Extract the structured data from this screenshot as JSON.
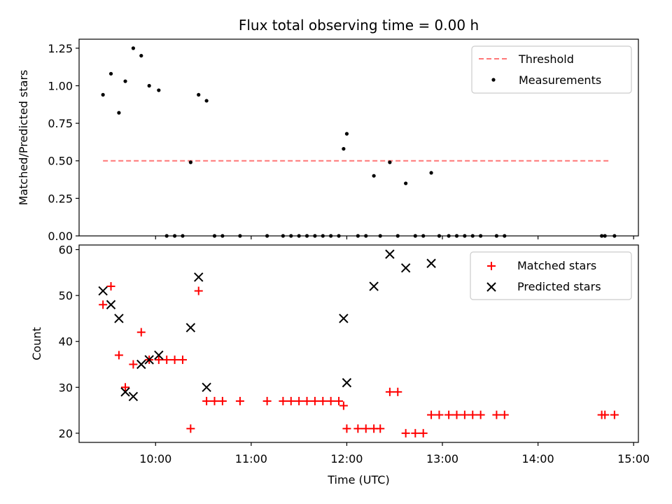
{
  "title": "Flux total observing time = 0.00 h",
  "chart_data": [
    {
      "type": "scatter",
      "ylabel": "Matched/Predicted stars",
      "ylim": [
        0,
        1.31
      ],
      "xlim": [
        "09:12",
        "15:03"
      ],
      "yticks": [
        "0.00",
        "0.25",
        "0.50",
        "0.75",
        "1.00",
        "1.25"
      ],
      "ytick_values": [
        0,
        0.25,
        0.5,
        0.75,
        1.0,
        1.25
      ],
      "legend_placement": "upper right",
      "threshold": {
        "name": "Threshold",
        "value": 0.5,
        "x_start": "09:27",
        "x_end": "14:45",
        "color": "#ff7777"
      },
      "series": [
        {
          "name": "Measurements",
          "color": "#000000",
          "x": [
            "09:27",
            "09:32",
            "09:37",
            "09:41",
            "09:46",
            "09:51",
            "09:56",
            "10:02",
            "10:07",
            "10:12",
            "10:17",
            "10:22",
            "10:27",
            "10:32",
            "10:37",
            "10:42",
            "10:53",
            "11:10",
            "11:20",
            "11:25",
            "11:30",
            "11:35",
            "11:40",
            "11:45",
            "11:50",
            "11:55",
            "11:58",
            "12:00",
            "12:07",
            "12:12",
            "12:17",
            "12:21",
            "12:27",
            "12:32",
            "12:37",
            "12:43",
            "12:48",
            "12:53",
            "12:58",
            "13:04",
            "13:09",
            "13:14",
            "13:19",
            "13:24",
            "13:34",
            "13:39",
            "14:40",
            "14:42",
            "14:48"
          ],
          "y": [
            0.94,
            1.08,
            0.82,
            1.03,
            1.25,
            1.2,
            1.0,
            0.97,
            0,
            0,
            0,
            0.49,
            0.94,
            0.9,
            0,
            0,
            0,
            0,
            0,
            0,
            0,
            0,
            0,
            0,
            0,
            0,
            0.58,
            0.68,
            0,
            0,
            0.4,
            0,
            0.49,
            0,
            0.35,
            0,
            0,
            0.42,
            0,
            0,
            0,
            0,
            0,
            0,
            0,
            0,
            0,
            0,
            0
          ]
        }
      ]
    },
    {
      "type": "scatter",
      "ylabel": "Count",
      "xlabel": "Time (UTC)",
      "ylim": [
        18,
        61
      ],
      "xlim": [
        "09:12",
        "15:03"
      ],
      "xticks": [
        "10:00",
        "11:00",
        "12:00",
        "13:00",
        "14:00",
        "15:00"
      ],
      "yticks": [
        "20",
        "30",
        "40",
        "50",
        "60"
      ],
      "ytick_values": [
        20,
        30,
        40,
        50,
        60
      ],
      "legend_placement": "upper right",
      "series": [
        {
          "name": "Matched stars",
          "marker": "+",
          "color": "#ff0000",
          "x": [
            "09:27",
            "09:32",
            "09:37",
            "09:41",
            "09:46",
            "09:51",
            "09:56",
            "10:02",
            "10:07",
            "10:12",
            "10:17",
            "10:22",
            "10:27",
            "10:32",
            "10:37",
            "10:42",
            "10:53",
            "11:10",
            "11:20",
            "11:25",
            "11:30",
            "11:35",
            "11:40",
            "11:45",
            "11:50",
            "11:55",
            "11:58",
            "12:00",
            "12:07",
            "12:12",
            "12:17",
            "12:21",
            "12:27",
            "12:32",
            "12:37",
            "12:43",
            "12:48",
            "12:53",
            "12:58",
            "13:04",
            "13:09",
            "13:14",
            "13:19",
            "13:24",
            "13:34",
            "13:39",
            "14:40",
            "14:42",
            "14:48"
          ],
          "y": [
            48,
            52,
            37,
            30,
            35,
            42,
            36,
            36,
            36,
            36,
            36,
            21,
            51,
            27,
            27,
            27,
            27,
            27,
            27,
            27,
            27,
            27,
            27,
            27,
            27,
            27,
            26,
            21,
            21,
            21,
            21,
            21,
            29,
            29,
            20,
            20,
            20,
            24,
            24,
            24,
            24,
            24,
            24,
            24,
            24,
            24,
            24,
            24,
            24
          ]
        },
        {
          "name": "Predicted stars",
          "marker": "x",
          "color": "#000000",
          "x": [
            "09:27",
            "09:32",
            "09:37",
            "09:41",
            "09:46",
            "09:51",
            "09:56",
            "10:02",
            "10:22",
            "10:27",
            "10:32",
            "11:58",
            "12:00",
            "12:17",
            "12:27",
            "12:37",
            "12:53"
          ],
          "y": [
            51,
            48,
            45,
            29,
            28,
            35,
            36,
            37,
            43,
            54,
            30,
            45,
            31,
            52,
            59,
            56,
            57
          ]
        }
      ]
    }
  ]
}
